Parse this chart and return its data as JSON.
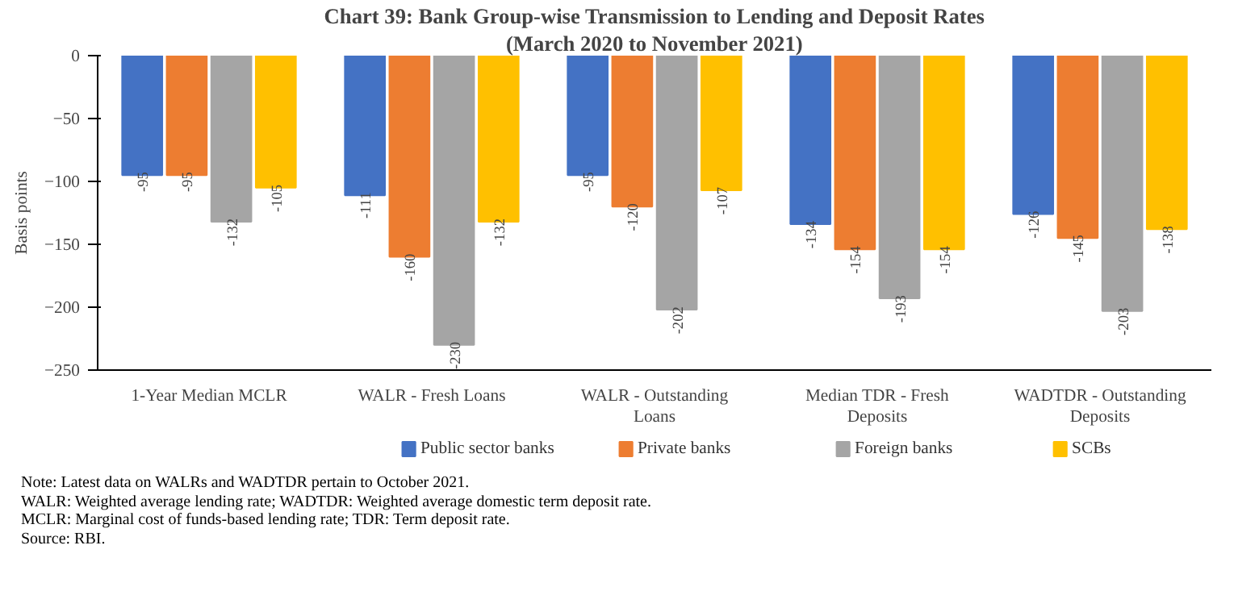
{
  "chart_data": {
    "type": "bar",
    "title": "Chart 39: Bank Group-wise Transmission to Lending and Deposit Rates",
    "subtitle": "(March 2020 to November 2021)",
    "ylabel": "Basis points",
    "categories": [
      "1-Year Median MCLR",
      "WALR - Fresh Loans",
      "WALR - Outstanding Loans",
      "Median TDR - Fresh Deposits",
      "WADTDR - Outstanding Deposits"
    ],
    "series": [
      {
        "name": "Public sector banks",
        "color": "#4472c4",
        "values": [
          -95,
          -111,
          -95,
          -134,
          -126
        ]
      },
      {
        "name": "Private banks",
        "color": "#ed7d31",
        "values": [
          -95,
          -160,
          -120,
          -154,
          -145
        ]
      },
      {
        "name": "Foreign banks",
        "color": "#a5a5a5",
        "values": [
          -132,
          -230,
          -202,
          -193,
          -203
        ]
      },
      {
        "name": "SCBs",
        "color": "#ffc000",
        "values": [
          -105,
          -132,
          -107,
          -154,
          -138
        ]
      }
    ],
    "ylim": [
      -250,
      0
    ],
    "yticks": [
      -250,
      -200,
      -150,
      -100,
      -50,
      0
    ],
    "grid": false,
    "legend": "bottom",
    "data_labels": true,
    "annotations": [
      "Note: Latest data on WALRs and WADTDR pertain to October 2021.",
      "WALR: Weighted average lending rate; WADTDR: Weighted average domestic term deposit rate.",
      "MCLR: Marginal cost of funds-based lending rate; TDR: Term deposit rate.",
      "Source: RBI."
    ]
  }
}
